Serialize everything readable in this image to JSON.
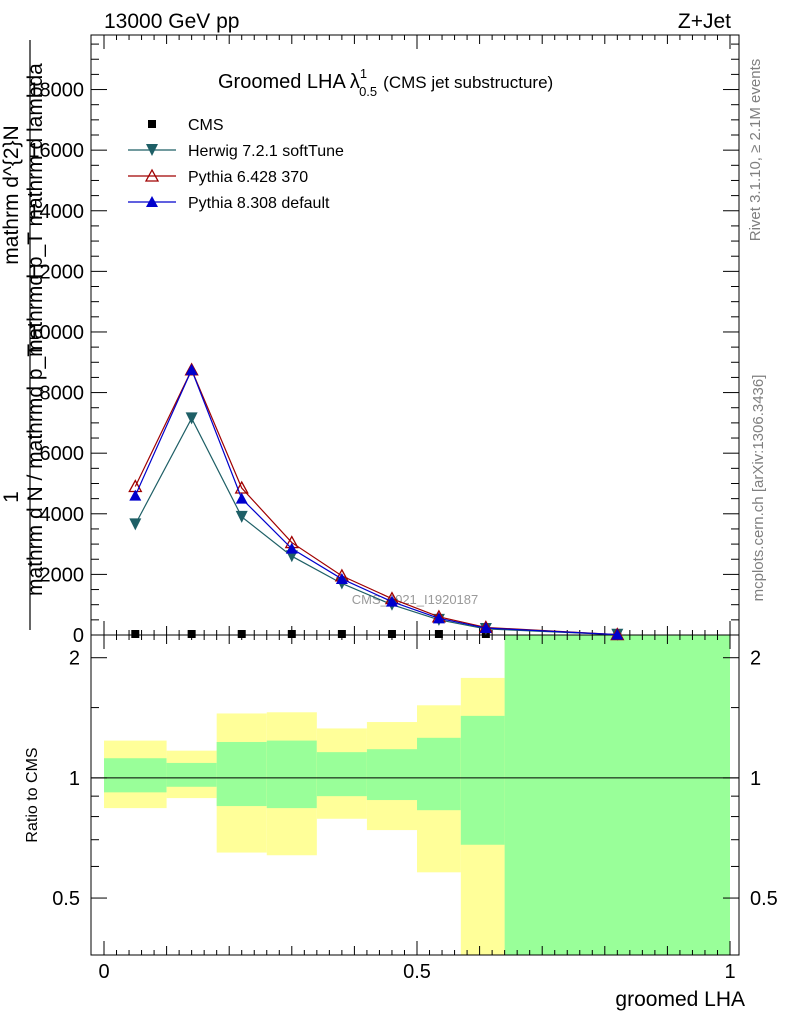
{
  "header": {
    "energy": "13000 GeV pp",
    "process": "Z+Jet"
  },
  "title": {
    "main": "Groomed LHA",
    "lambda": "λ",
    "sup": "1",
    "sub": "0.5",
    "suffix": "(CMS jet substructure)"
  },
  "side_labels": {
    "rivet": "Rivet 3.1.10, ≥ 2.1M events",
    "mcplots": "mcplots.cern.ch [arXiv:1306.3436]"
  },
  "watermark": "CMS_2021_I1920187",
  "colors": {
    "herwig": "#1e5f66",
    "pythia6": "#a00000",
    "pythia8": "#0000cc",
    "band_inner": "#99ff99",
    "band_outer": "#ffff99"
  },
  "chart_data": [
    {
      "type": "line",
      "panel": "main",
      "ylabel_parts": [
        "1",
        "mathrm d N / mathrmd p_T",
        "mathrm d^{2}N",
        "mathrmd p_T mathrm d lambda"
      ],
      "ylim": [
        0,
        19800
      ],
      "xlim": [
        0,
        1
      ],
      "yticks": [
        0,
        2000,
        4000,
        6000,
        8000,
        10000,
        12000,
        14000,
        16000,
        18000
      ],
      "series": [
        {
          "name": "CMS",
          "marker": "square",
          "x": [
            0.05,
            0.14,
            0.22,
            0.3,
            0.38,
            0.46,
            0.535,
            0.61,
            0.82
          ],
          "y": [
            0,
            0,
            0,
            0,
            0,
            0,
            0,
            0,
            0
          ]
        },
        {
          "name": "Herwig 7.2.1 softTune",
          "marker": "triangle-down",
          "x": [
            0.05,
            0.14,
            0.22,
            0.3,
            0.38,
            0.46,
            0.535,
            0.61,
            0.82
          ],
          "y": [
            3650,
            7150,
            3900,
            2600,
            1700,
            1000,
            500,
            200,
            10
          ]
        },
        {
          "name": "Pythia 6.428 370",
          "marker": "triangle-open",
          "x": [
            0.05,
            0.14,
            0.22,
            0.3,
            0.38,
            0.46,
            0.535,
            0.61,
            0.82
          ],
          "y": [
            4900,
            8750,
            4850,
            3050,
            1950,
            1200,
            600,
            250,
            15
          ]
        },
        {
          "name": "Pythia 8.308 default",
          "marker": "triangle",
          "x": [
            0.05,
            0.14,
            0.22,
            0.3,
            0.38,
            0.46,
            0.535,
            0.61,
            0.82
          ],
          "y": [
            4600,
            8750,
            4500,
            2850,
            1850,
            1100,
            550,
            230,
            12
          ]
        }
      ]
    },
    {
      "type": "area",
      "panel": "ratio",
      "ylabel": "Ratio to CMS",
      "xlabel": "groomed LHA",
      "xlim": [
        0,
        1
      ],
      "ylim": [
        0.36,
        2.28
      ],
      "xticks": [
        "0",
        "0.5",
        "1"
      ],
      "yticks": [
        "0.5",
        "1",
        "2"
      ],
      "bins": [
        {
          "x0": 0.0,
          "x1": 0.1,
          "inner": [
            0.92,
            1.12
          ],
          "outer": [
            0.84,
            1.24
          ]
        },
        {
          "x0": 0.1,
          "x1": 0.18,
          "inner": [
            0.95,
            1.09
          ],
          "outer": [
            0.89,
            1.17
          ]
        },
        {
          "x0": 0.18,
          "x1": 0.26,
          "inner": [
            0.85,
            1.23
          ],
          "outer": [
            0.65,
            1.45
          ]
        },
        {
          "x0": 0.26,
          "x1": 0.34,
          "inner": [
            0.84,
            1.24
          ],
          "outer": [
            0.64,
            1.46
          ]
        },
        {
          "x0": 0.34,
          "x1": 0.42,
          "inner": [
            0.9,
            1.16
          ],
          "outer": [
            0.79,
            1.33
          ]
        },
        {
          "x0": 0.42,
          "x1": 0.5,
          "inner": [
            0.88,
            1.18
          ],
          "outer": [
            0.74,
            1.38
          ]
        },
        {
          "x0": 0.5,
          "x1": 0.57,
          "inner": [
            0.83,
            1.26
          ],
          "outer": [
            0.58,
            1.52
          ]
        },
        {
          "x0": 0.57,
          "x1": 0.64,
          "inner": [
            0.68,
            1.43
          ],
          "outer": [
            0.36,
            1.78
          ]
        },
        {
          "x0": 0.64,
          "x1": 1.0,
          "inner": [
            0.36,
            2.28
          ],
          "outer": [
            0.36,
            2.28
          ]
        }
      ]
    }
  ]
}
